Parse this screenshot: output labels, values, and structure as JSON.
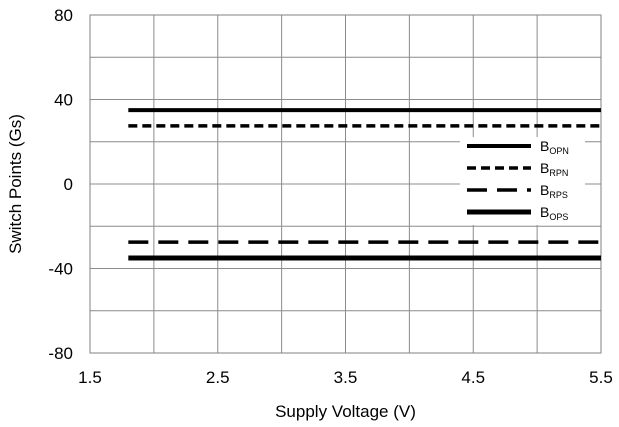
{
  "chart_data": {
    "type": "line",
    "xlabel": "Supply Voltage (V)",
    "ylabel": "Switch Points (Gs)",
    "xlim": [
      1.5,
      5.5
    ],
    "ylim": [
      -80,
      80
    ],
    "x_ticks": [
      "1.5",
      "2.5",
      "3.5",
      "4.5",
      "5.5"
    ],
    "y_ticks": [
      "80",
      "40",
      "0",
      "-40",
      "-80"
    ],
    "grid": true,
    "legend_position": "right",
    "series": [
      {
        "name": "B",
        "sub": "OPN",
        "style": "solid",
        "x": [
          1.8,
          5.5
        ],
        "y": [
          35,
          35
        ]
      },
      {
        "name": "B",
        "sub": "RPN",
        "style": "short-dash",
        "x": [
          1.8,
          5.5
        ],
        "y": [
          27.5,
          27.5
        ]
      },
      {
        "name": "B",
        "sub": "RPS",
        "style": "long-dash",
        "x": [
          1.8,
          5.5
        ],
        "y": [
          -27.5,
          -27.5
        ]
      },
      {
        "name": "B",
        "sub": "OPS",
        "style": "solid-heavy",
        "x": [
          1.8,
          5.5
        ],
        "y": [
          -35,
          -35
        ]
      }
    ]
  }
}
